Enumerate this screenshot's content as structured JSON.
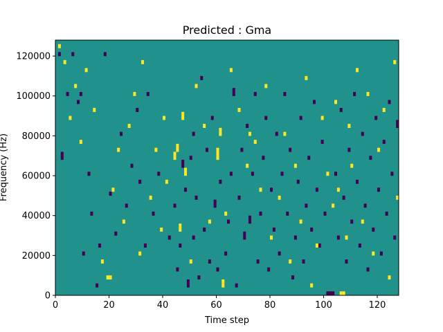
{
  "chart_data": {
    "type": "heatmap",
    "title": "Predicted : Gma",
    "xlabel": "Time step",
    "ylabel": "Frequency (Hz)",
    "xlim": [
      0,
      128
    ],
    "ylim": [
      0,
      128000
    ],
    "xticks": [
      0,
      20,
      40,
      60,
      80,
      100,
      120
    ],
    "yticks": [
      0,
      20000,
      40000,
      60000,
      80000,
      100000,
      120000
    ],
    "xtick_labels": [
      "0",
      "20",
      "40",
      "60",
      "80",
      "100",
      "120"
    ],
    "ytick_labels": [
      "0",
      "20000",
      "40000",
      "60000",
      "80000",
      "100000",
      "120000"
    ],
    "grid": false,
    "colormap": "viridis",
    "levels": [
      -1,
      0,
      1
    ],
    "level_colors": {
      "-1": "#440154",
      "0": "#21918c",
      "1": "#fde725"
    },
    "background_level": 0,
    "time_bins": 128,
    "freq_bins": 64,
    "freq_bin_hz": 2000,
    "cells": [
      [
        1,
        60,
        -1
      ],
      [
        2,
        34,
        -1
      ],
      [
        2,
        35,
        -1
      ],
      [
        4,
        50,
        -1
      ],
      [
        6,
        60,
        -1
      ],
      [
        8,
        48,
        -1
      ],
      [
        9,
        50,
        -1
      ],
      [
        10,
        10,
        -1
      ],
      [
        12,
        30,
        -1
      ],
      [
        13,
        20,
        -1
      ],
      [
        15,
        2,
        -1
      ],
      [
        16,
        12,
        -1
      ],
      [
        18,
        60,
        -1
      ],
      [
        20,
        25,
        -1
      ],
      [
        22,
        15,
        -1
      ],
      [
        24,
        40,
        -1
      ],
      [
        26,
        22,
        -1
      ],
      [
        28,
        32,
        -1
      ],
      [
        30,
        46,
        -1
      ],
      [
        31,
        28,
        -1
      ],
      [
        33,
        12,
        -1
      ],
      [
        34,
        50,
        -1
      ],
      [
        36,
        20,
        -1
      ],
      [
        38,
        30,
        -1
      ],
      [
        42,
        14,
        -1
      ],
      [
        44,
        22,
        -1
      ],
      [
        45,
        6,
        -1
      ],
      [
        46,
        12,
        -1
      ],
      [
        47,
        32,
        -1
      ],
      [
        47,
        33,
        -1
      ],
      [
        48,
        26,
        -1
      ],
      [
        49,
        2,
        -1
      ],
      [
        49,
        3,
        -1
      ],
      [
        50,
        34,
        -1
      ],
      [
        51,
        14,
        -1
      ],
      [
        51,
        40,
        -1
      ],
      [
        52,
        24,
        -1
      ],
      [
        53,
        4,
        -1
      ],
      [
        54,
        54,
        -1
      ],
      [
        55,
        16,
        -1
      ],
      [
        56,
        36,
        -1
      ],
      [
        57,
        8,
        -1
      ],
      [
        58,
        44,
        -1
      ],
      [
        59,
        22,
        -1
      ],
      [
        59,
        23,
        -1
      ],
      [
        60,
        6,
        -1
      ],
      [
        61,
        28,
        -1
      ],
      [
        63,
        10,
        -1
      ],
      [
        64,
        18,
        -1
      ],
      [
        65,
        30,
        -1
      ],
      [
        66,
        50,
        -1
      ],
      [
        66,
        51,
        -1
      ],
      [
        67,
        2,
        -1
      ],
      [
        68,
        24,
        -1
      ],
      [
        69,
        36,
        -1
      ],
      [
        70,
        14,
        -1
      ],
      [
        70,
        15,
        -1
      ],
      [
        71,
        42,
        -1
      ],
      [
        72,
        18,
        -1
      ],
      [
        72,
        19,
        -1
      ],
      [
        73,
        30,
        -1
      ],
      [
        74,
        50,
        -1
      ],
      [
        75,
        8,
        -1
      ],
      [
        76,
        20,
        -1
      ],
      [
        77,
        34,
        -1
      ],
      [
        78,
        44,
        -1
      ],
      [
        79,
        6,
        -1
      ],
      [
        80,
        26,
        -1
      ],
      [
        81,
        16,
        -1
      ],
      [
        82,
        40,
        -1
      ],
      [
        83,
        10,
        -1
      ],
      [
        84,
        30,
        -1
      ],
      [
        85,
        50,
        -1
      ],
      [
        86,
        20,
        -1
      ],
      [
        87,
        36,
        -1
      ],
      [
        88,
        4,
        -1
      ],
      [
        89,
        14,
        -1
      ],
      [
        90,
        28,
        -1
      ],
      [
        91,
        44,
        -1
      ],
      [
        92,
        8,
        -1
      ],
      [
        93,
        22,
        -1
      ],
      [
        94,
        34,
        -1
      ],
      [
        95,
        16,
        -1
      ],
      [
        96,
        48,
        -1
      ],
      [
        97,
        26,
        -1
      ],
      [
        98,
        12,
        -1
      ],
      [
        99,
        38,
        -1
      ],
      [
        100,
        20,
        -1
      ],
      [
        101,
        0,
        -1
      ],
      [
        102,
        0,
        -1
      ],
      [
        103,
        0,
        -1
      ],
      [
        104,
        30,
        -1
      ],
      [
        105,
        14,
        -1
      ],
      [
        106,
        46,
        -1
      ],
      [
        107,
        24,
        -1
      ],
      [
        108,
        8,
        -1
      ],
      [
        109,
        36,
        -1
      ],
      [
        110,
        18,
        -1
      ],
      [
        111,
        50,
        -1
      ],
      [
        112,
        28,
        -1
      ],
      [
        113,
        12,
        -1
      ],
      [
        114,
        40,
        -1
      ],
      [
        115,
        22,
        -1
      ],
      [
        116,
        6,
        -1
      ],
      [
        117,
        34,
        -1
      ],
      [
        118,
        16,
        -1
      ],
      [
        119,
        44,
        -1
      ],
      [
        120,
        26,
        -1
      ],
      [
        121,
        10,
        -1
      ],
      [
        122,
        38,
        -1
      ],
      [
        123,
        20,
        -1
      ],
      [
        124,
        48,
        -1
      ],
      [
        125,
        30,
        -1
      ],
      [
        126,
        14,
        -1
      ],
      [
        127,
        42,
        -1
      ],
      [
        127,
        43,
        -1
      ],
      [
        1,
        62,
        1
      ],
      [
        3,
        58,
        1
      ],
      [
        5,
        44,
        1
      ],
      [
        7,
        52,
        1
      ],
      [
        9,
        38,
        1
      ],
      [
        11,
        56,
        1
      ],
      [
        14,
        46,
        1
      ],
      [
        17,
        8,
        1
      ],
      [
        19,
        4,
        1
      ],
      [
        20,
        4,
        1
      ],
      [
        21,
        26,
        1
      ],
      [
        23,
        36,
        1
      ],
      [
        25,
        18,
        1
      ],
      [
        27,
        42,
        1
      ],
      [
        29,
        50,
        1
      ],
      [
        31,
        10,
        1
      ],
      [
        32,
        58,
        1
      ],
      [
        35,
        24,
        1
      ],
      [
        37,
        36,
        1
      ],
      [
        39,
        16,
        1
      ],
      [
        40,
        44,
        1
      ],
      [
        41,
        28,
        1
      ],
      [
        44,
        34,
        1
      ],
      [
        44,
        35,
        1
      ],
      [
        45,
        36,
        1
      ],
      [
        45,
        37,
        1
      ],
      [
        46,
        16,
        1
      ],
      [
        46,
        17,
        1
      ],
      [
        47,
        44,
        1
      ],
      [
        47,
        45,
        1
      ],
      [
        48,
        30,
        1
      ],
      [
        48,
        31,
        1
      ],
      [
        50,
        8,
        1
      ],
      [
        52,
        52,
        1
      ],
      [
        55,
        42,
        1
      ],
      [
        57,
        18,
        1
      ],
      [
        60,
        34,
        1
      ],
      [
        60,
        35,
        1
      ],
      [
        60,
        36,
        1
      ],
      [
        61,
        40,
        1
      ],
      [
        61,
        41,
        1
      ],
      [
        62,
        2,
        1
      ],
      [
        62,
        3,
        1
      ],
      [
        63,
        20,
        1
      ],
      [
        65,
        56,
        1
      ],
      [
        68,
        46,
        1
      ],
      [
        71,
        32,
        1
      ],
      [
        72,
        40,
        1
      ],
      [
        74,
        38,
        1
      ],
      [
        76,
        26,
        1
      ],
      [
        78,
        52,
        1
      ],
      [
        80,
        14,
        1
      ],
      [
        83,
        24,
        1
      ],
      [
        85,
        40,
        1
      ],
      [
        87,
        8,
        1
      ],
      [
        89,
        32,
        1
      ],
      [
        91,
        18,
        1
      ],
      [
        93,
        54,
        1
      ],
      [
        95,
        2,
        1
      ],
      [
        97,
        12,
        1
      ],
      [
        99,
        44,
        1
      ],
      [
        101,
        30,
        1
      ],
      [
        103,
        22,
        1
      ],
      [
        104,
        48,
        1
      ],
      [
        105,
        26,
        1
      ],
      [
        106,
        0,
        1
      ],
      [
        107,
        0,
        1
      ],
      [
        108,
        14,
        1
      ],
      [
        109,
        42,
        1
      ],
      [
        110,
        32,
        1
      ],
      [
        112,
        56,
        1
      ],
      [
        114,
        18,
        1
      ],
      [
        116,
        50,
        1
      ],
      [
        118,
        10,
        1
      ],
      [
        120,
        36,
        1
      ],
      [
        122,
        46,
        1
      ],
      [
        124,
        4,
        1
      ],
      [
        126,
        58,
        1
      ],
      [
        127,
        24,
        1
      ]
    ]
  }
}
